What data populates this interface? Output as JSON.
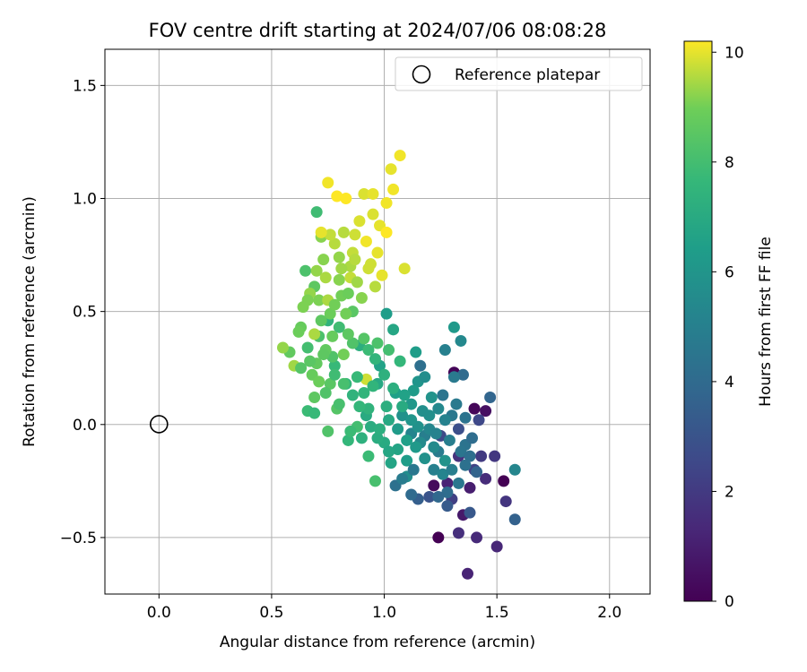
{
  "chart_data": {
    "type": "scatter",
    "title": "FOV centre drift starting at 2024/07/06 08:08:28",
    "xlabel": "Angular distance from reference (arcmin)",
    "ylabel": "Rotation from reference (arcmin)",
    "xlim": [
      -0.24,
      2.18
    ],
    "ylim": [
      -0.75,
      1.66
    ],
    "xticks": [
      0.0,
      0.5,
      1.0,
      1.5,
      2.0
    ],
    "xtick_labels": [
      "0.0",
      "0.5",
      "1.0",
      "1.5",
      "2.0"
    ],
    "yticks": [
      -0.5,
      0.0,
      0.5,
      1.0,
      1.5
    ],
    "ytick_labels": [
      "−0.5",
      "0.0",
      "0.5",
      "1.0",
      "1.5"
    ],
    "grid": true,
    "legend": {
      "placement": "upper right",
      "entries": [
        {
          "label": "Reference platepar",
          "marker": "open-circle"
        }
      ]
    },
    "reference_point": {
      "x": 0.0,
      "y": 0.0
    },
    "colorbar": {
      "label": "Hours from first FF file",
      "colormap": "viridis",
      "range": [
        0,
        10.2
      ],
      "ticks": [
        0,
        2,
        4,
        6,
        8,
        10
      ],
      "tick_labels": [
        "0",
        "2",
        "4",
        "6",
        "8",
        "10"
      ]
    },
    "points": [
      [
        1.24,
        -0.5,
        0.0
      ],
      [
        1.31,
        0.23,
        0.1
      ],
      [
        1.4,
        0.07,
        0.2
      ],
      [
        1.53,
        -0.25,
        0.0
      ],
      [
        1.22,
        -0.27,
        0.3
      ],
      [
        1.45,
        0.06,
        0.5
      ],
      [
        1.37,
        -0.66,
        1.2
      ],
      [
        1.33,
        -0.48,
        1.6
      ],
      [
        1.41,
        -0.5,
        1.4
      ],
      [
        1.5,
        -0.54,
        1.3
      ],
      [
        1.54,
        -0.34,
        1.8
      ],
      [
        1.49,
        -0.14,
        1.9
      ],
      [
        1.45,
        -0.24,
        1.5
      ],
      [
        1.38,
        -0.28,
        1.0
      ],
      [
        1.43,
        -0.14,
        2.0
      ],
      [
        1.35,
        -0.4,
        0.8
      ],
      [
        1.28,
        -0.26,
        1.2
      ],
      [
        1.33,
        -0.14,
        1.7
      ],
      [
        1.3,
        -0.33,
        2.2
      ],
      [
        1.4,
        -0.2,
        2.3
      ],
      [
        1.25,
        -0.05,
        2.6
      ],
      [
        1.2,
        -0.32,
        3.0
      ],
      [
        1.33,
        -0.02,
        2.8
      ],
      [
        1.42,
        0.02,
        2.5
      ],
      [
        1.38,
        -0.39,
        3.2
      ],
      [
        1.28,
        -0.36,
        3.3
      ],
      [
        1.15,
        -0.33,
        3.5
      ],
      [
        1.58,
        -0.42,
        3.6
      ],
      [
        1.47,
        0.12,
        3.8
      ],
      [
        1.35,
        0.22,
        4.0
      ],
      [
        1.16,
        0.26,
        4.2
      ],
      [
        1.12,
        -0.31,
        4.0
      ],
      [
        1.05,
        -0.27,
        4.3
      ],
      [
        1.26,
        0.13,
        4.5
      ],
      [
        1.3,
        0.04,
        4.6
      ],
      [
        1.36,
        -0.09,
        4.4
      ],
      [
        1.24,
        -0.12,
        4.8
      ],
      [
        1.31,
        0.21,
        4.7
      ],
      [
        1.18,
        -0.05,
        4.9
      ],
      [
        1.22,
        -0.2,
        5.0
      ],
      [
        1.12,
        -0.04,
        5.2
      ],
      [
        1.27,
        0.33,
        5.0
      ],
      [
        1.34,
        0.37,
        5.4
      ],
      [
        1.58,
        -0.2,
        5.3
      ],
      [
        1.1,
        -0.23,
        5.6
      ],
      [
        1.16,
        -0.08,
        5.5
      ],
      [
        1.2,
        0.04,
        5.7
      ],
      [
        1.27,
        -0.16,
        5.9
      ],
      [
        1.08,
        0.04,
        5.8
      ],
      [
        1.15,
        0.19,
        6.0
      ],
      [
        1.12,
        0.09,
        6.1
      ],
      [
        1.31,
        0.43,
        6.2
      ],
      [
        1.06,
        -0.02,
        6.3
      ],
      [
        1.01,
        0.49,
        6.4
      ],
      [
        1.05,
        0.14,
        6.5
      ],
      [
        0.98,
        0.26,
        6.6
      ],
      [
        1.1,
        -0.07,
        6.5
      ],
      [
        1.03,
        -0.17,
        6.7
      ],
      [
        1.14,
        0.32,
        6.4
      ],
      [
        1.04,
        0.42,
        6.8
      ],
      [
        0.97,
        0.18,
        6.9
      ],
      [
        0.92,
        0.04,
        7.0
      ],
      [
        1.0,
        -0.08,
        7.0
      ],
      [
        0.94,
        -0.01,
        7.1
      ],
      [
        1.01,
        0.08,
        7.2
      ],
      [
        0.9,
        -0.06,
        7.3
      ],
      [
        0.89,
        0.35,
        7.2
      ],
      [
        0.86,
        0.13,
        7.4
      ],
      [
        0.91,
        0.14,
        7.5
      ],
      [
        0.96,
        0.29,
        7.5
      ],
      [
        0.83,
        0.18,
        7.6
      ],
      [
        0.78,
        0.26,
        7.7
      ],
      [
        0.66,
        0.06,
        7.8
      ],
      [
        0.75,
        0.46,
        7.4
      ],
      [
        0.84,
        -0.07,
        7.6
      ],
      [
        0.93,
        -0.14,
        7.8
      ],
      [
        0.7,
        0.94,
        7.9
      ],
      [
        0.69,
        0.05,
        7.7
      ],
      [
        0.8,
        0.43,
        7.9
      ],
      [
        0.88,
        -0.01,
        8.0
      ],
      [
        0.82,
        0.18,
        8.1
      ],
      [
        0.96,
        -0.25,
        8.1
      ],
      [
        0.65,
        0.68,
        8.2
      ],
      [
        0.75,
        -0.03,
        8.3
      ],
      [
        0.71,
        0.39,
        8.2
      ],
      [
        0.77,
        0.3,
        8.3
      ],
      [
        0.79,
        0.07,
        8.4
      ],
      [
        0.86,
        0.5,
        8.5
      ],
      [
        0.69,
        0.61,
        8.6
      ],
      [
        0.72,
        0.46,
        8.6
      ],
      [
        0.74,
        0.33,
        8.7
      ],
      [
        0.58,
        0.32,
        8.7
      ],
      [
        0.63,
        0.43,
        8.8
      ],
      [
        0.68,
        0.22,
        8.8
      ],
      [
        0.76,
        0.49,
        8.9
      ],
      [
        0.81,
        0.57,
        9.0
      ],
      [
        0.82,
        0.31,
        9.0
      ],
      [
        0.71,
        0.55,
        9.1
      ],
      [
        0.72,
        0.83,
        9.2
      ],
      [
        0.8,
        0.64,
        9.2
      ],
      [
        0.67,
        0.58,
        9.3
      ],
      [
        0.55,
        0.34,
        9.3
      ],
      [
        0.6,
        0.26,
        9.4
      ],
      [
        0.69,
        0.4,
        9.5
      ],
      [
        0.75,
        0.55,
        9.5
      ],
      [
        0.82,
        0.85,
        9.6
      ],
      [
        0.86,
        0.76,
        9.7
      ],
      [
        0.85,
        0.65,
        9.7
      ],
      [
        0.92,
        0.2,
        9.8
      ],
      [
        0.94,
        0.71,
        9.8
      ],
      [
        0.91,
        1.02,
        9.9
      ],
      [
        0.95,
        1.02,
        10.0
      ],
      [
        1.03,
        1.13,
        10.0
      ],
      [
        1.07,
        1.19,
        10.1
      ],
      [
        1.01,
        0.98,
        10.1
      ],
      [
        0.98,
        0.88,
        10.0
      ],
      [
        0.95,
        0.93,
        9.9
      ],
      [
        0.87,
        0.84,
        9.8
      ],
      [
        0.75,
        1.07,
        10.1
      ],
      [
        0.79,
        1.01,
        10.2
      ],
      [
        0.83,
        1.0,
        10.2
      ],
      [
        1.04,
        1.04,
        10.1
      ],
      [
        1.09,
        0.69,
        9.9
      ],
      [
        0.99,
        0.66,
        10.0
      ],
      [
        0.78,
        0.8,
        9.6
      ],
      [
        0.76,
        0.84,
        9.7
      ],
      [
        0.72,
        0.85,
        10.0
      ],
      [
        0.89,
        0.9,
        9.9
      ],
      [
        0.92,
        0.81,
        10.1
      ],
      [
        0.97,
        0.76,
        10.0
      ],
      [
        1.01,
        0.85,
        10.2
      ],
      [
        0.85,
        0.7,
        9.5
      ],
      [
        0.88,
        0.63,
        9.4
      ],
      [
        0.8,
        0.74,
        9.3
      ],
      [
        0.73,
        0.73,
        9.2
      ],
      [
        0.66,
        0.55,
        9.1
      ],
      [
        0.78,
        0.53,
        9.0
      ],
      [
        0.84,
        0.58,
        8.9
      ],
      [
        0.91,
        0.38,
        8.4
      ],
      [
        0.97,
        0.36,
        8.2
      ],
      [
        1.02,
        0.33,
        8.0
      ],
      [
        1.07,
        0.28,
        7.6
      ],
      [
        1.0,
        0.22,
        7.3
      ],
      [
        0.93,
        0.33,
        7.8
      ],
      [
        0.86,
        0.36,
        8.3
      ],
      [
        0.84,
        0.4,
        8.6
      ],
      [
        0.76,
        0.18,
        8.5
      ],
      [
        0.7,
        0.27,
        8.7
      ],
      [
        0.71,
        0.19,
        8.9
      ],
      [
        0.69,
        0.12,
        8.6
      ],
      [
        0.63,
        0.25,
        8.4
      ],
      [
        0.66,
        0.34,
        8.0
      ],
      [
        0.78,
        0.22,
        7.9
      ],
      [
        0.88,
        0.21,
        7.7
      ],
      [
        0.95,
        0.17,
        7.5
      ],
      [
        1.04,
        0.16,
        7.2
      ],
      [
        1.08,
        0.08,
        7.0
      ],
      [
        1.02,
        0.02,
        6.9
      ],
      [
        0.97,
        -0.06,
        7.1
      ],
      [
        1.06,
        -0.11,
        6.7
      ],
      [
        1.1,
        -0.16,
        6.4
      ],
      [
        1.14,
        -0.1,
        6.2
      ],
      [
        1.18,
        -0.15,
        5.8
      ],
      [
        1.22,
        -0.1,
        5.5
      ],
      [
        1.26,
        -0.22,
        5.2
      ],
      [
        1.3,
        -0.2,
        4.9
      ],
      [
        1.33,
        -0.26,
        4.6
      ],
      [
        1.36,
        -0.18,
        4.3
      ],
      [
        1.28,
        -0.3,
        4.1
      ],
      [
        1.24,
        -0.32,
        3.9
      ],
      [
        1.18,
        0.21,
        5.6
      ],
      [
        1.13,
        0.15,
        6.3
      ],
      [
        1.09,
        0.13,
        6.6
      ],
      [
        1.21,
        0.12,
        5.9
      ],
      [
        1.24,
        0.07,
        5.4
      ],
      [
        1.27,
        0.02,
        5.1
      ],
      [
        1.32,
        0.09,
        4.7
      ],
      [
        1.36,
        0.03,
        4.4
      ],
      [
        1.39,
        -0.06,
        4.1
      ],
      [
        1.41,
        -0.21,
        3.7
      ],
      [
        1.2,
        -0.02,
        5.3
      ],
      [
        1.15,
        -0.01,
        5.8
      ],
      [
        1.12,
        0.02,
        6.0
      ],
      [
        1.17,
        0.06,
        5.7
      ],
      [
        1.23,
        -0.04,
        5.1
      ],
      [
        1.29,
        -0.07,
        4.9
      ],
      [
        1.34,
        -0.12,
        4.5
      ],
      [
        1.38,
        -0.14,
        4.2
      ],
      [
        1.13,
        -0.2,
        4.6
      ],
      [
        1.08,
        -0.24,
        4.8
      ],
      [
        1.02,
        -0.12,
        6.8
      ],
      [
        0.98,
        -0.02,
        7.2
      ],
      [
        0.93,
        0.07,
        7.4
      ],
      [
        0.89,
        0.08,
        7.6
      ],
      [
        0.85,
        -0.03,
        7.8
      ],
      [
        0.8,
        0.09,
        8.1
      ],
      [
        0.74,
        0.14,
        8.3
      ],
      [
        0.67,
        0.28,
        8.5
      ],
      [
        0.62,
        0.41,
        8.9
      ],
      [
        0.64,
        0.52,
        9.1
      ],
      [
        0.7,
        0.68,
        9.3
      ],
      [
        0.74,
        0.65,
        9.5
      ],
      [
        0.81,
        0.69,
        9.4
      ],
      [
        0.87,
        0.73,
        9.6
      ],
      [
        0.93,
        0.69,
        9.8
      ],
      [
        0.96,
        0.61,
        9.6
      ],
      [
        0.9,
        0.56,
        9.2
      ],
      [
        0.83,
        0.49,
        9.0
      ],
      [
        0.77,
        0.39,
        8.8
      ],
      [
        0.73,
        0.31,
        8.6
      ]
    ]
  }
}
